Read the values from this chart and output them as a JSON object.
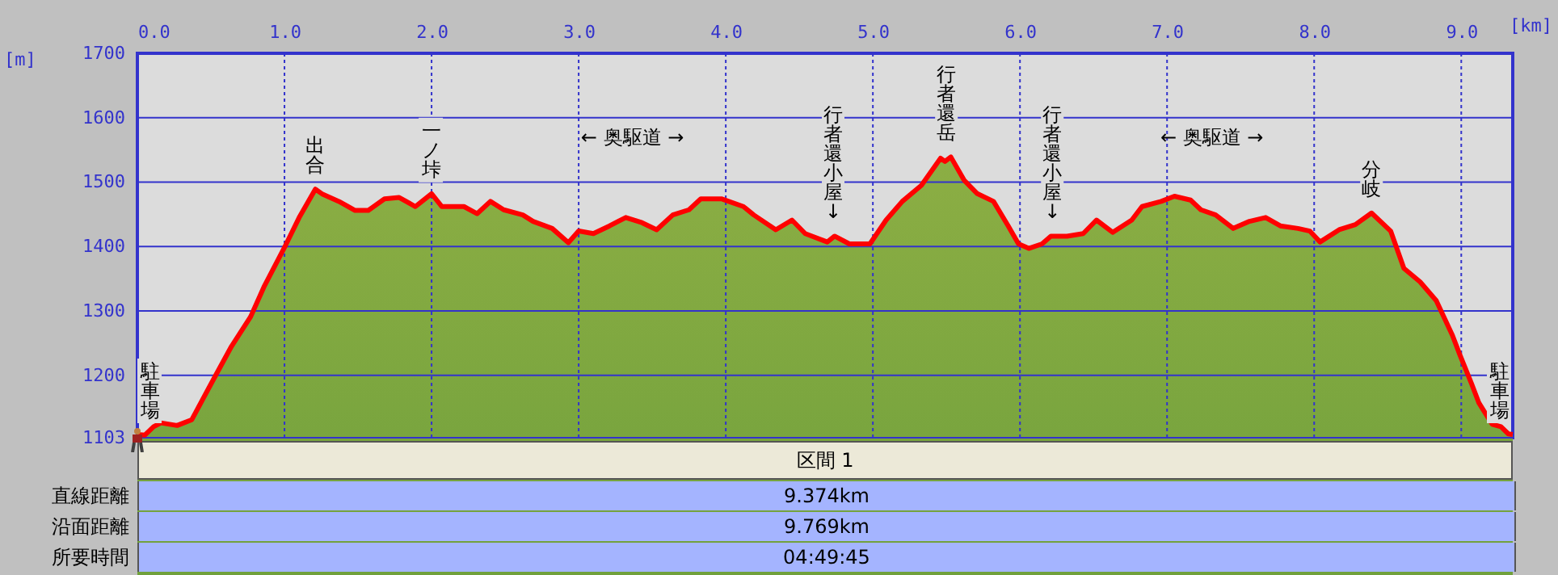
{
  "chart_data": {
    "type": "area",
    "xlabel": "[km]",
    "ylabel": "[m]",
    "xlim": [
      0,
      9.35
    ],
    "ylim": [
      1103,
      1700
    ],
    "xticks": [
      {
        "value": 0,
        "label": "0.0"
      },
      {
        "value": 1,
        "label": "1.0"
      },
      {
        "value": 2,
        "label": "2.0"
      },
      {
        "value": 3,
        "label": "3.0"
      },
      {
        "value": 4,
        "label": "4.0"
      },
      {
        "value": 5,
        "label": "5.0"
      },
      {
        "value": 6,
        "label": "6.0"
      },
      {
        "value": 7,
        "label": "7.0"
      },
      {
        "value": 8,
        "label": "8.0"
      },
      {
        "value": 9,
        "label": "9.0"
      }
    ],
    "yticks": [
      1103,
      1200,
      1300,
      1400,
      1500,
      1600,
      1700
    ],
    "grid": true,
    "line_style": "solid",
    "x": [
      0,
      0.05,
      0.11,
      0.16,
      0.27,
      0.37,
      0.53,
      0.64,
      0.77,
      0.86,
      1.01,
      1.1,
      1.21,
      1.26,
      1.37,
      1.48,
      1.57,
      1.68,
      1.78,
      1.89,
      2.0,
      2.07,
      2.22,
      2.31,
      2.4,
      2.49,
      2.62,
      2.69,
      2.82,
      2.93,
      3.0,
      3.1,
      3.21,
      3.32,
      3.43,
      3.53,
      3.64,
      3.75,
      3.83,
      3.97,
      4.12,
      4.19,
      4.34,
      4.45,
      4.54,
      4.69,
      4.74,
      4.84,
      4.98,
      5.09,
      5.2,
      5.33,
      5.46,
      5.49,
      5.53,
      5.62,
      5.71,
      5.82,
      5.92,
      5.99,
      6.06,
      6.15,
      6.21,
      6.32,
      6.43,
      6.52,
      6.63,
      6.76,
      6.83,
      6.96,
      7.05,
      7.16,
      7.23,
      7.33,
      7.45,
      7.56,
      7.67,
      7.77,
      7.89,
      7.97,
      8.04,
      8.17,
      8.28,
      8.39,
      8.52,
      8.61,
      8.72,
      8.83,
      8.94,
      8.99,
      9.07,
      9.12,
      9.21,
      9.27,
      9.32,
      9.35
    ],
    "series": [
      {
        "color": "#ff0000",
        "values": [
          1108,
          1107,
          1120,
          1126,
          1122,
          1131,
          1199,
          1245,
          1291,
          1337,
          1403,
          1445,
          1489,
          1481,
          1470,
          1456,
          1456,
          1474,
          1476,
          1462,
          1482,
          1462,
          1462,
          1451,
          1470,
          1457,
          1449,
          1439,
          1428,
          1406,
          1424,
          1420,
          1432,
          1445,
          1437,
          1426,
          1449,
          1457,
          1474,
          1474,
          1462,
          1449,
          1426,
          1441,
          1420,
          1407,
          1416,
          1404,
          1404,
          1441,
          1470,
          1495,
          1537,
          1532,
          1539,
          1503,
          1482,
          1470,
          1432,
          1404,
          1397,
          1404,
          1416,
          1416,
          1420,
          1441,
          1422,
          1441,
          1462,
          1470,
          1478,
          1472,
          1457,
          1449,
          1428,
          1439,
          1445,
          1432,
          1428,
          1424,
          1407,
          1426,
          1434,
          1452,
          1424,
          1366,
          1345,
          1316,
          1262,
          1232,
          1187,
          1157,
          1124,
          1120,
          1109,
          1108
        ]
      }
    ],
    "annotations": [
      {
        "text": "駐車場",
        "x": 0,
        "y": 1108
      },
      {
        "text": "出合",
        "x": 1.21,
        "y": 1489
      },
      {
        "text": "一ノ垰",
        "x": 2.0,
        "y": 1482
      },
      "← 奥駆道 →",
      {
        "text": "行者還小屋↓",
        "x": 4.73,
        "y": 1416
      },
      {
        "text": "行者還岳",
        "x": 5.5,
        "y": 1539
      },
      {
        "text": "行者還小屋↓",
        "x": 6.22,
        "y": 1416
      },
      "← 奥駆道 →",
      {
        "text": "分岐",
        "x": 8.39,
        "y": 1452
      },
      {
        "text": "駐車場",
        "x": 9.35,
        "y": 1108
      },
      "区間 1",
      "直線距離",
      "9.374km",
      "沿面距離",
      "9.769km",
      "所要時間",
      "04:49:45"
    ]
  }
}
